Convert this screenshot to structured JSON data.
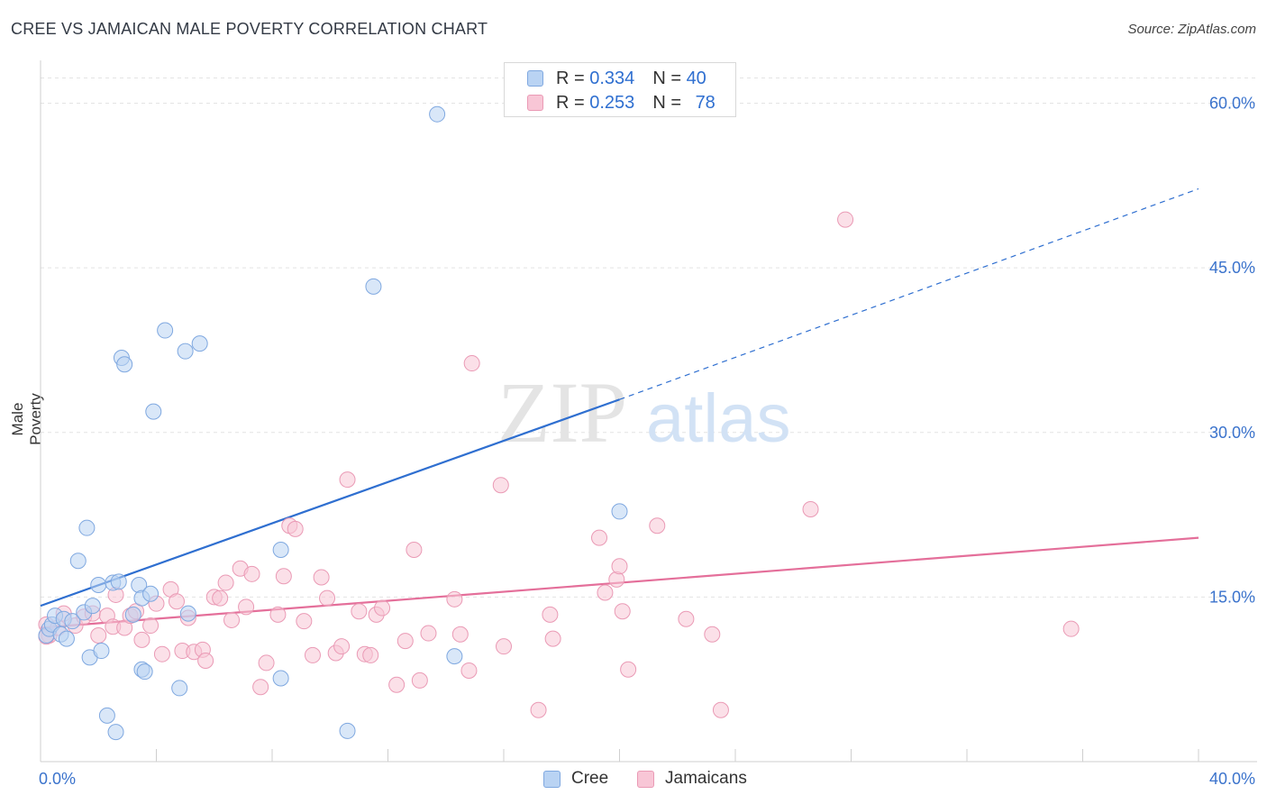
{
  "header": {
    "title": "CREE VS JAMAICAN MALE POVERTY CORRELATION CHART",
    "source": "Source: ZipAtlas.com"
  },
  "legend": {
    "rows": [
      {
        "r_label": "R = ",
        "r_value": "0.334",
        "n_label": "N = ",
        "n_value": "40"
      },
      {
        "r_label": "R = ",
        "r_value": "0.253",
        "n_label": "N = ",
        "n_value": "78"
      }
    ]
  },
  "bottom_legend": [
    "Cree",
    "Jamaicans"
  ],
  "watermark": {
    "zip": "ZIP",
    "atlas": "atlas"
  },
  "colors": {
    "cree_fill": "#b9d3f3",
    "cree_stroke": "#7fa8e0",
    "cree_line": "#2f6fd0",
    "jam_fill": "#f8c6d6",
    "jam_stroke": "#ea9ab5",
    "jam_line": "#e46f9a",
    "tick_label": "#3b73cc",
    "grid": "#e3e3e3"
  },
  "chart_data": {
    "type": "scatter",
    "title": "CREE VS JAMAICAN MALE POVERTY CORRELATION CHART",
    "xlabel": "",
    "ylabel": "Male Poverty",
    "xlim": [
      0,
      40
    ],
    "ylim": [
      0,
      63
    ],
    "x_tick_labels": [
      {
        "v": 0,
        "t": "0.0%"
      },
      {
        "v": 40,
        "t": "40.0%"
      }
    ],
    "y_tick_labels": [
      {
        "v": 15,
        "t": "15.0%"
      },
      {
        "v": 30,
        "t": "30.0%"
      },
      {
        "v": 45,
        "t": "45.0%"
      },
      {
        "v": 60,
        "t": "60.0%"
      }
    ],
    "grid": true,
    "legend_position": "top-center",
    "series": [
      {
        "name": "Cree",
        "r": 0.334,
        "n": 40,
        "trend": {
          "x0": 0,
          "y0": 14.2,
          "x1": 20,
          "y1": 33.0,
          "dashed_to_x": 40,
          "dashed_to_y": 52.2
        },
        "points": [
          [
            0.2,
            11.5
          ],
          [
            0.3,
            12.1
          ],
          [
            0.4,
            12.5
          ],
          [
            0.5,
            13.3
          ],
          [
            0.7,
            11.6
          ],
          [
            0.8,
            13.0
          ],
          [
            0.9,
            11.2
          ],
          [
            1.1,
            12.8
          ],
          [
            1.3,
            18.3
          ],
          [
            1.5,
            13.6
          ],
          [
            1.6,
            21.3
          ],
          [
            1.7,
            9.5
          ],
          [
            1.8,
            14.2
          ],
          [
            2.0,
            16.1
          ],
          [
            2.1,
            10.1
          ],
          [
            2.3,
            4.2
          ],
          [
            2.5,
            16.3
          ],
          [
            2.6,
            2.7
          ],
          [
            2.7,
            16.4
          ],
          [
            2.8,
            36.8
          ],
          [
            2.9,
            36.2
          ],
          [
            3.2,
            13.4
          ],
          [
            3.4,
            16.1
          ],
          [
            3.5,
            14.9
          ],
          [
            3.5,
            8.4
          ],
          [
            3.6,
            8.2
          ],
          [
            3.8,
            15.3
          ],
          [
            3.9,
            31.9
          ],
          [
            4.3,
            39.3
          ],
          [
            4.8,
            6.7
          ],
          [
            5.0,
            37.4
          ],
          [
            5.1,
            13.5
          ],
          [
            5.5,
            38.1
          ],
          [
            8.3,
            19.3
          ],
          [
            8.3,
            7.6
          ],
          [
            10.6,
            2.8
          ],
          [
            11.5,
            43.3
          ],
          [
            13.7,
            59.0
          ],
          [
            14.3,
            9.6
          ],
          [
            20.0,
            22.8
          ]
        ]
      },
      {
        "name": "Jamaicans",
        "r": 0.253,
        "n": 78,
        "trend": {
          "x0": 0,
          "y0": 12.2,
          "x1": 40,
          "y1": 20.4
        },
        "points": [
          [
            0.2,
            12.5
          ],
          [
            0.3,
            11.5
          ],
          [
            0.6,
            12.2
          ],
          [
            0.8,
            13.5
          ],
          [
            1.2,
            12.4
          ],
          [
            1.5,
            13.2
          ],
          [
            1.8,
            13.5
          ],
          [
            2.0,
            11.5
          ],
          [
            2.3,
            13.3
          ],
          [
            2.5,
            12.3
          ],
          [
            2.6,
            15.2
          ],
          [
            2.9,
            12.2
          ],
          [
            3.1,
            13.3
          ],
          [
            3.3,
            13.7
          ],
          [
            3.5,
            11.1
          ],
          [
            3.8,
            12.4
          ],
          [
            4.0,
            14.4
          ],
          [
            4.2,
            9.8
          ],
          [
            4.5,
            15.7
          ],
          [
            4.7,
            14.6
          ],
          [
            4.9,
            10.1
          ],
          [
            5.1,
            13.1
          ],
          [
            5.3,
            10.0
          ],
          [
            5.6,
            10.2
          ],
          [
            5.7,
            9.2
          ],
          [
            6.0,
            15.0
          ],
          [
            6.2,
            14.9
          ],
          [
            6.4,
            16.3
          ],
          [
            6.6,
            12.9
          ],
          [
            6.9,
            17.6
          ],
          [
            7.1,
            14.1
          ],
          [
            7.3,
            17.1
          ],
          [
            7.6,
            6.8
          ],
          [
            7.8,
            9.0
          ],
          [
            8.2,
            13.4
          ],
          [
            8.4,
            16.9
          ],
          [
            8.6,
            21.5
          ],
          [
            8.8,
            21.2
          ],
          [
            9.1,
            12.8
          ],
          [
            9.4,
            9.7
          ],
          [
            9.7,
            16.8
          ],
          [
            9.9,
            14.9
          ],
          [
            10.2,
            9.9
          ],
          [
            10.4,
            10.5
          ],
          [
            10.6,
            25.7
          ],
          [
            11.0,
            13.7
          ],
          [
            11.2,
            9.8
          ],
          [
            11.4,
            9.7
          ],
          [
            11.6,
            13.4
          ],
          [
            11.8,
            14.0
          ],
          [
            12.3,
            7.0
          ],
          [
            12.6,
            11.0
          ],
          [
            12.9,
            19.3
          ],
          [
            13.1,
            7.4
          ],
          [
            13.4,
            11.7
          ],
          [
            14.3,
            14.8
          ],
          [
            14.5,
            11.6
          ],
          [
            14.8,
            8.3
          ],
          [
            14.9,
            36.3
          ],
          [
            15.9,
            25.2
          ],
          [
            16.0,
            10.5
          ],
          [
            17.2,
            4.7
          ],
          [
            17.6,
            13.4
          ],
          [
            17.7,
            11.2
          ],
          [
            19.3,
            20.4
          ],
          [
            19.5,
            15.4
          ],
          [
            19.9,
            16.6
          ],
          [
            20.0,
            17.8
          ],
          [
            20.1,
            13.7
          ],
          [
            20.3,
            8.4
          ],
          [
            21.3,
            21.5
          ],
          [
            22.3,
            13.0
          ],
          [
            23.2,
            11.6
          ],
          [
            23.5,
            4.7
          ],
          [
            26.6,
            23.0
          ],
          [
            27.8,
            49.4
          ],
          [
            35.6,
            12.1
          ],
          [
            0.2,
            11.4
          ]
        ]
      }
    ]
  }
}
